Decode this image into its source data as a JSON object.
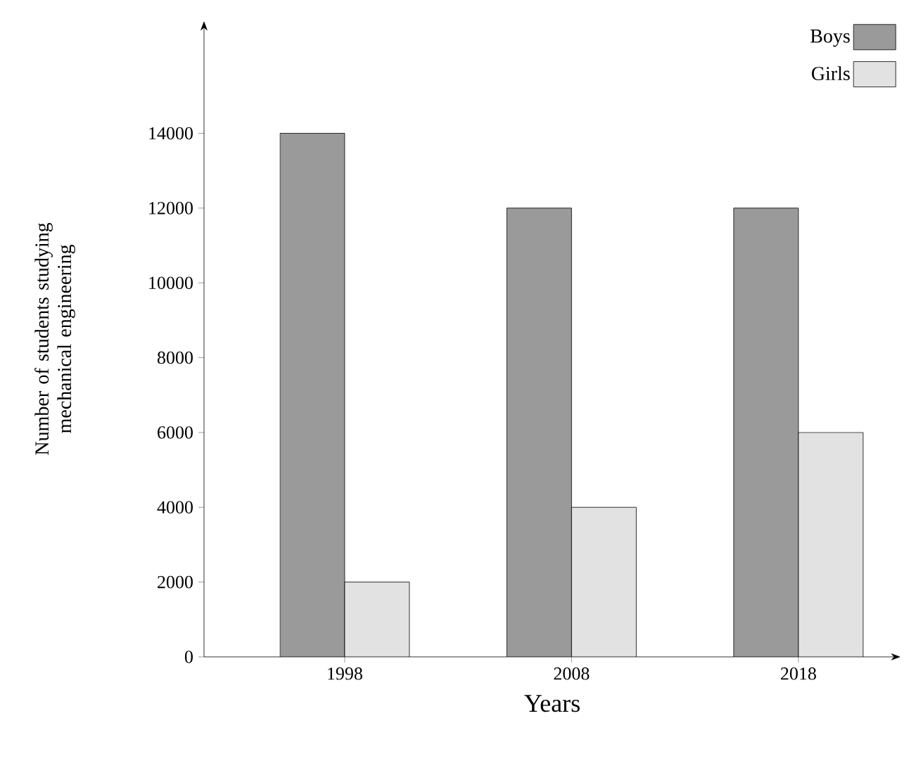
{
  "chart_data": {
    "type": "bar",
    "xlabel": "Years",
    "ylabel": "Number of students studying mechanical engineering",
    "categories": [
      "1998",
      "2008",
      "2018"
    ],
    "series": [
      {
        "name": "Boys",
        "color": "#9a9a9a",
        "values": [
          14000,
          12000,
          12000
        ]
      },
      {
        "name": "Girls",
        "color": "#e2e2e2",
        "values": [
          2000,
          4000,
          6000
        ]
      }
    ],
    "ylim": [
      0,
      17000
    ],
    "yticks": [
      0,
      2000,
      4000,
      6000,
      8000,
      10000,
      12000,
      14000
    ],
    "grid": false,
    "legend": "top right"
  }
}
